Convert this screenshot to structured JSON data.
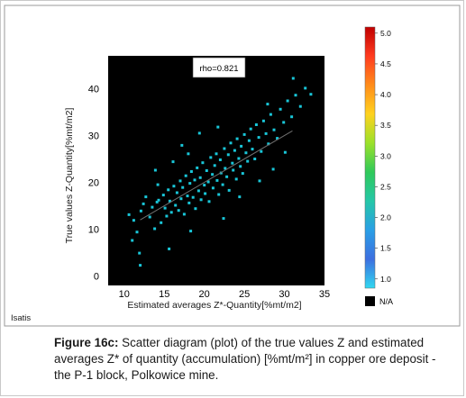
{
  "chart_data": {
    "type": "scatter",
    "xlabel": "Estimated averages Z*-Quantity[%mt/m2]",
    "ylabel": "True values Z-Quantity[%mt/m2]",
    "xlim": [
      8,
      35
    ],
    "ylim": [
      -2,
      47
    ],
    "xticks": [
      "10",
      "15",
      "20",
      "25",
      "30",
      "35"
    ],
    "yticks": [
      "0",
      "10",
      "20",
      "30",
      "40"
    ],
    "annotation": "rho=0.821",
    "software_label": "Isatis",
    "background": "#000000",
    "point_color": "#19c6d8",
    "points": [
      [
        10.6,
        13.1
      ],
      [
        11.0,
        7.6
      ],
      [
        11.2,
        11.9
      ],
      [
        11.6,
        9.4
      ],
      [
        12.1,
        13.9
      ],
      [
        12.4,
        15.4
      ],
      [
        12.7,
        16.9
      ],
      [
        13.2,
        12.6
      ],
      [
        13.5,
        14.7
      ],
      [
        13.8,
        10.1
      ],
      [
        14.1,
        15.8
      ],
      [
        14.3,
        16.2
      ],
      [
        14.6,
        11.4
      ],
      [
        14.9,
        17.3
      ],
      [
        15.1,
        14.5
      ],
      [
        15.3,
        12.8
      ],
      [
        15.5,
        18.4
      ],
      [
        15.7,
        16.0
      ],
      [
        15.9,
        13.6
      ],
      [
        16.2,
        19.2
      ],
      [
        16.4,
        15.1
      ],
      [
        16.6,
        17.8
      ],
      [
        16.8,
        14.0
      ],
      [
        17.0,
        20.3
      ],
      [
        17.1,
        16.5
      ],
      [
        17.3,
        18.9
      ],
      [
        17.5,
        13.2
      ],
      [
        17.7,
        21.4
      ],
      [
        17.9,
        17.1
      ],
      [
        18.1,
        15.6
      ],
      [
        18.2,
        19.8
      ],
      [
        18.4,
        22.3
      ],
      [
        18.6,
        16.8
      ],
      [
        18.8,
        20.5
      ],
      [
        18.9,
        14.4
      ],
      [
        19.1,
        23.1
      ],
      [
        19.3,
        18.2
      ],
      [
        19.5,
        21.0
      ],
      [
        19.6,
        16.3
      ],
      [
        19.8,
        24.2
      ],
      [
        20.0,
        19.4
      ],
      [
        20.1,
        17.6
      ],
      [
        20.3,
        22.5
      ],
      [
        20.5,
        20.1
      ],
      [
        20.6,
        15.9
      ],
      [
        20.8,
        25.3
      ],
      [
        21.0,
        21.7
      ],
      [
        21.1,
        18.8
      ],
      [
        21.3,
        23.6
      ],
      [
        21.5,
        26.1
      ],
      [
        21.6,
        20.4
      ],
      [
        21.8,
        17.4
      ],
      [
        22.0,
        24.8
      ],
      [
        22.1,
        22.0
      ],
      [
        22.3,
        19.5
      ],
      [
        22.5,
        27.2
      ],
      [
        22.6,
        23.0
      ],
      [
        22.8,
        21.2
      ],
      [
        23.0,
        25.9
      ],
      [
        23.1,
        18.3
      ],
      [
        23.3,
        28.4
      ],
      [
        23.5,
        24.1
      ],
      [
        23.6,
        22.6
      ],
      [
        23.8,
        26.8
      ],
      [
        24.0,
        20.7
      ],
      [
        24.1,
        29.3
      ],
      [
        24.3,
        25.1
      ],
      [
        24.5,
        23.4
      ],
      [
        24.6,
        27.7
      ],
      [
        24.8,
        21.9
      ],
      [
        25.0,
        30.2
      ],
      [
        25.2,
        26.3
      ],
      [
        25.4,
        24.5
      ],
      [
        25.6,
        28.9
      ],
      [
        25.8,
        31.4
      ],
      [
        26.0,
        27.1
      ],
      [
        26.3,
        25.0
      ],
      [
        26.5,
        32.3
      ],
      [
        26.8,
        29.6
      ],
      [
        27.1,
        26.6
      ],
      [
        27.4,
        33.1
      ],
      [
        27.7,
        30.4
      ],
      [
        28.0,
        28.2
      ],
      [
        28.3,
        34.5
      ],
      [
        28.7,
        31.2
      ],
      [
        29.1,
        29.4
      ],
      [
        29.5,
        35.6
      ],
      [
        29.9,
        32.8
      ],
      [
        30.4,
        37.4
      ],
      [
        30.9,
        34.0
      ],
      [
        31.4,
        38.6
      ],
      [
        32.0,
        36.2
      ],
      [
        32.6,
        40.1
      ],
      [
        33.3,
        38.8
      ],
      [
        31.1,
        42.2
      ],
      [
        19.4,
        30.5
      ],
      [
        17.2,
        27.9
      ],
      [
        21.7,
        31.8
      ],
      [
        24.4,
        16.9
      ],
      [
        26.9,
        20.3
      ],
      [
        13.9,
        22.6
      ],
      [
        16.1,
        24.4
      ],
      [
        12.0,
        2.3
      ],
      [
        15.6,
        5.8
      ],
      [
        18.3,
        9.6
      ],
      [
        22.4,
        12.3
      ],
      [
        28.6,
        22.8
      ],
      [
        30.1,
        26.4
      ],
      [
        14.2,
        19.5
      ],
      [
        18.0,
        26.1
      ],
      [
        11.9,
        4.9
      ],
      [
        27.9,
        36.7
      ]
    ]
  },
  "colorbar": {
    "labels": [
      "5.0",
      "4.5",
      "4.0",
      "3.5",
      "3.0",
      "2.5",
      "2.0",
      "1.5",
      "1.0"
    ],
    "na_label": "N/A",
    "colors": [
      "#c00000",
      "#ff3b1f",
      "#ff8c1a",
      "#ffd21f",
      "#9be12a",
      "#2fc95a",
      "#25c7a8",
      "#2a9fe6",
      "#3d6fe0"
    ]
  },
  "caption": {
    "label": "Figure 16c:",
    "text": " Scatter diagram (plot) of the true values Z and estimated averages Z* of quantity (accumulation) [%mt/m²] in copper ore deposit - the P-1 block, Polkowice mine."
  }
}
